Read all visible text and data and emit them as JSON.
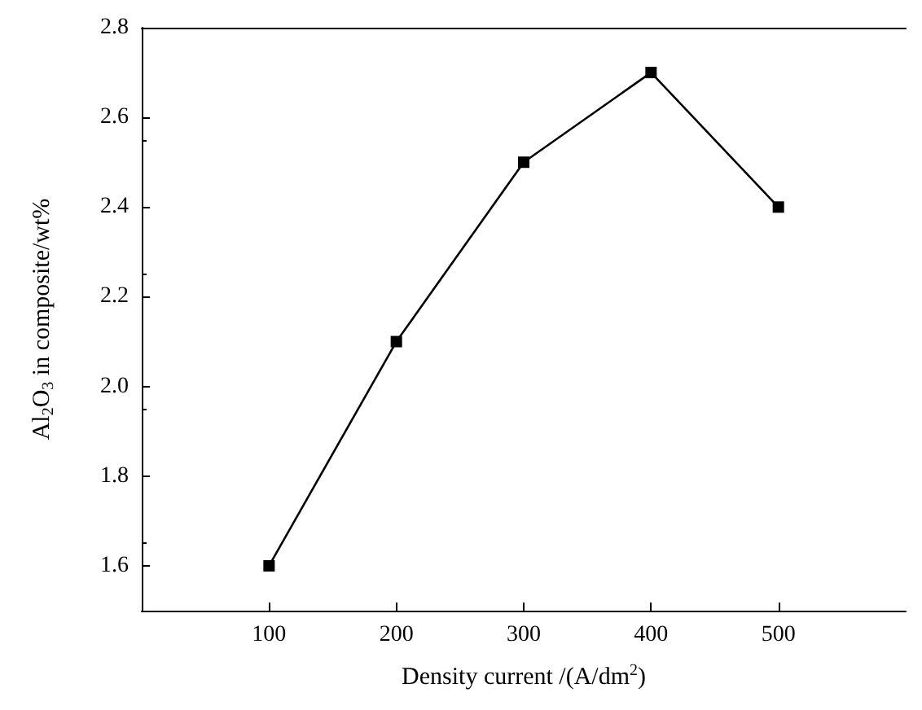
{
  "chart_data": {
    "type": "line",
    "xlabel": "Density current /(A/dm$^{2}$)",
    "ylabel": "Al$_{2}$O$_{3}$ in composite/wt%",
    "x": [
      100,
      200,
      300,
      400,
      500
    ],
    "series": [
      {
        "color": "#000000",
        "values": [
          1.6,
          2.1,
          2.5,
          2.7,
          2.4
        ]
      }
    ],
    "xlim": [
      0,
      600
    ],
    "xticks": [
      100,
      200,
      300,
      400,
      500
    ],
    "ylim": [
      1.5,
      2.8
    ],
    "yticks": [
      1.6,
      1.8,
      {
        "value": 2,
        "label": "2.0"
      },
      2.2,
      2.4,
      2.6,
      2.8
    ],
    "marker": "square",
    "line_style": "solid",
    "grid": false
  }
}
